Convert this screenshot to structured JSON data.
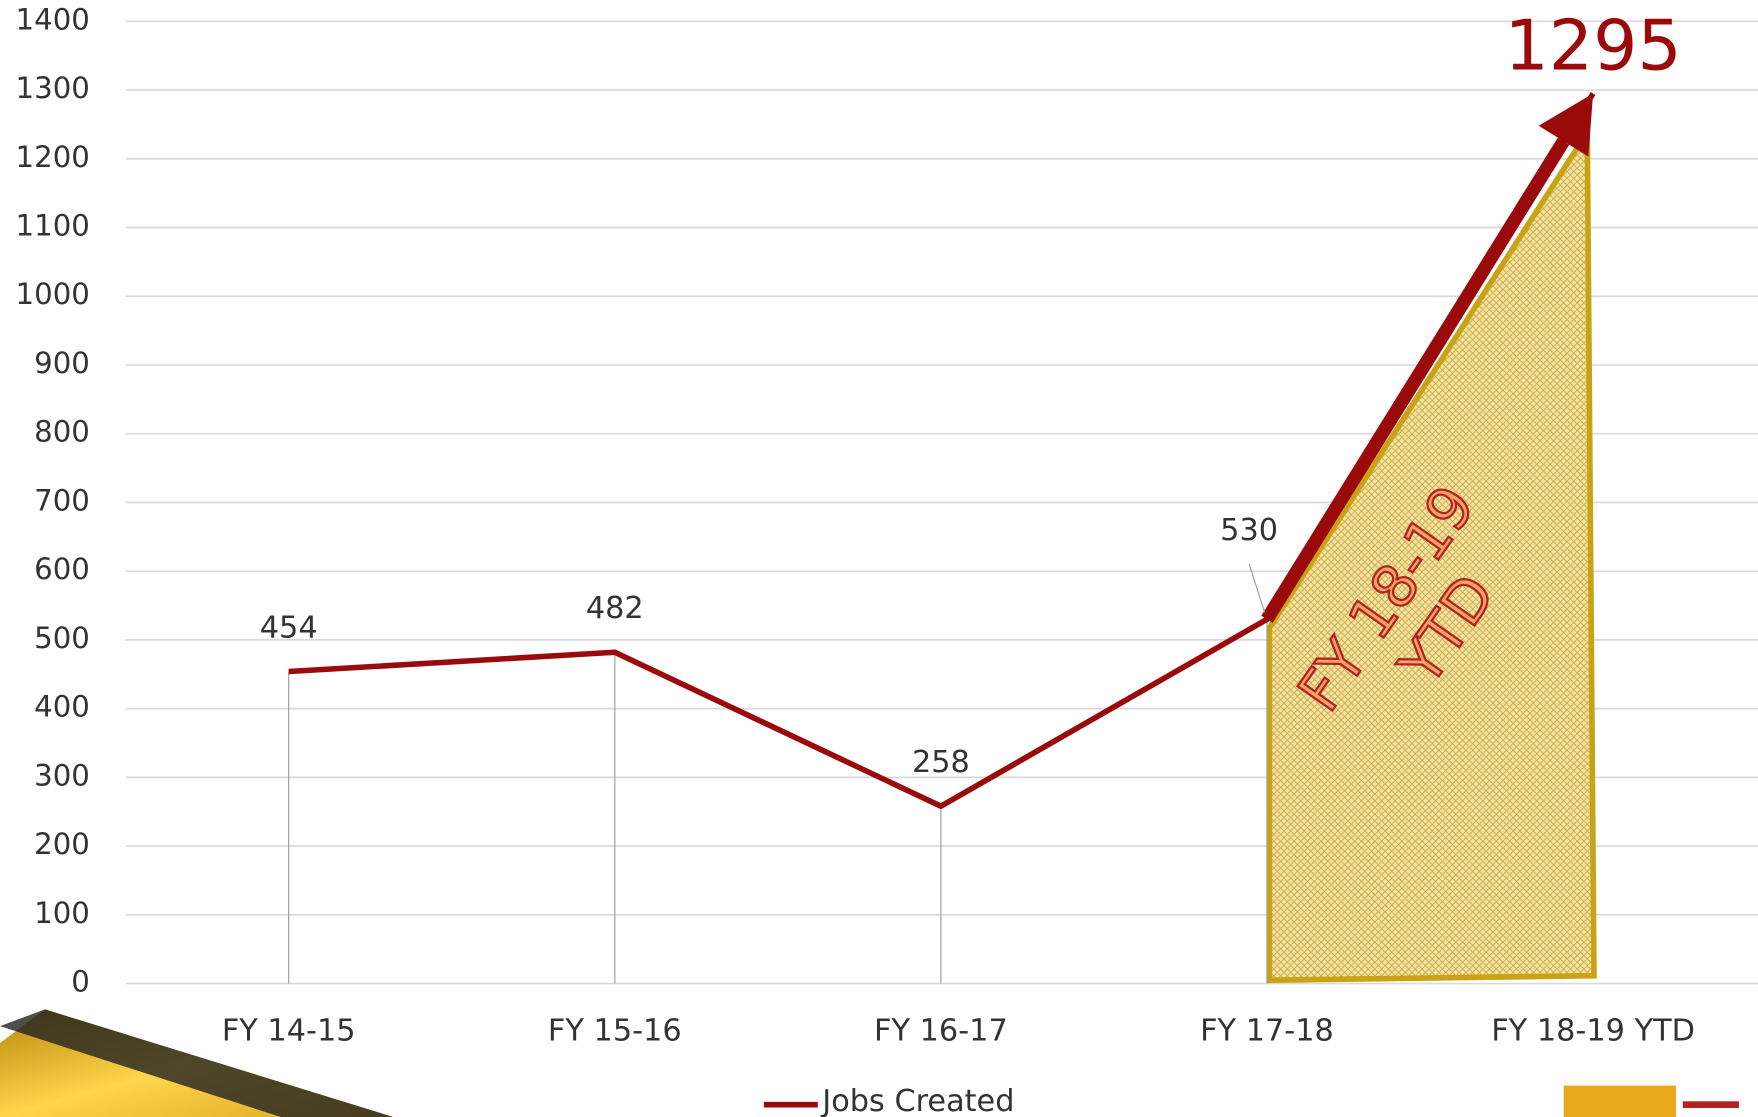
{
  "chart_data": {
    "type": "line",
    "categories": [
      "FY 14-15",
      "FY 15-16",
      "FY 16-17",
      "FY 17-18",
      "FY 18-19 YTD"
    ],
    "series": [
      {
        "name": "Jobs Created",
        "color": "#9b0a0a",
        "values": [
          454,
          482,
          258,
          530,
          1295
        ]
      }
    ],
    "ylim": [
      0,
      1400
    ],
    "yticks": [
      0,
      100,
      200,
      300,
      400,
      500,
      600,
      700,
      800,
      900,
      1000,
      1100,
      1200,
      1300,
      1400
    ],
    "grid": true,
    "legend": "bottom",
    "annotation": [
      "FY 18-19",
      "YTD"
    ]
  }
}
